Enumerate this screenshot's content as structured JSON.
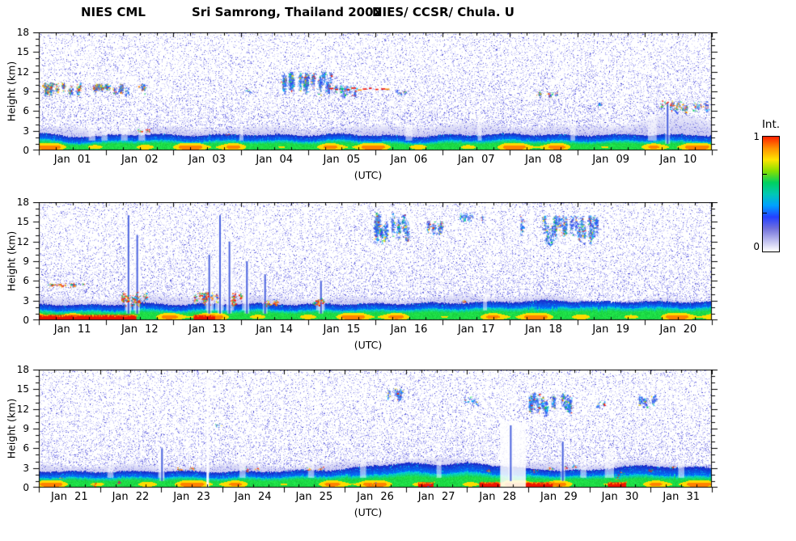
{
  "title": {
    "instrument": "NIES CML",
    "site": "Sri Samrong, Thailand 2002",
    "credit": "NIES/ CCSR/ Chula. U"
  },
  "chart_data": {
    "type": "heatmap",
    "title": "NIES CML   Sri Samrong, Thailand 2002   NIES/ CCSR/ Chula. U",
    "xlabel": "(UTC)",
    "ylabel": "Height (km)",
    "ylim": [
      0,
      18
    ],
    "yticks": [
      0,
      3,
      6,
      9,
      12,
      15,
      18
    ],
    "colorbar": {
      "label": "Int.",
      "tick_max": "1",
      "tick_min": "0",
      "stops": [
        "#ff2000",
        "#ff9000",
        "#ffe400",
        "#86e000",
        "#00d060",
        "#00c8b4",
        "#00a0ff",
        "#2440ff",
        "#7070dc",
        "#b8b8ee",
        "#ffffff"
      ]
    },
    "palettes": {
      "cirrus": [
        [
          0.34,
          "#2a4cf0"
        ],
        [
          0.55,
          "#3f6af2"
        ],
        [
          0.66,
          "#6e8ef2"
        ],
        [
          0.8,
          "#00b4ff"
        ],
        [
          0.89,
          "#00d25a"
        ],
        [
          0.94,
          "#ffe000"
        ],
        [
          1,
          "#ff2000"
        ]
      ],
      "cirrus2": [
        [
          0.3,
          "#2a4cf0"
        ],
        [
          0.46,
          "#4a72f2"
        ],
        [
          0.56,
          "#00b4ff"
        ],
        [
          0.68,
          "#00d25a"
        ],
        [
          0.78,
          "#ffe000"
        ],
        [
          0.88,
          "#ff8800"
        ],
        [
          1,
          "#ff2000"
        ]
      ],
      "spots": [
        [
          0.36,
          "#ff2000"
        ],
        [
          0.52,
          "#ff8800"
        ],
        [
          0.62,
          "#ffe000"
        ],
        [
          0.74,
          "#00d25a"
        ],
        [
          0.82,
          "#00b4ff"
        ],
        [
          1,
          "#2a4cf0"
        ]
      ],
      "reddash": [
        [
          0.7,
          "#f21000"
        ],
        [
          0.85,
          "#ff9000"
        ],
        [
          1,
          "#00d25a"
        ]
      ]
    },
    "panels": [
      {
        "days": [
          "Jan 01",
          "Jan 02",
          "Jan 03",
          "Jan 04",
          "Jan 05",
          "Jan 06",
          "Jan 07",
          "Jan 08",
          "Jan 09",
          "Jan 10"
        ],
        "haze_top": [
          [
            0,
            3.4
          ],
          [
            1,
            3.2
          ],
          [
            2,
            3.4
          ],
          [
            3,
            3.6
          ],
          [
            4,
            3.4
          ],
          [
            5,
            3.6
          ],
          [
            6,
            4.0
          ],
          [
            7,
            3.9
          ],
          [
            8,
            3.6
          ],
          [
            8.8,
            4.2
          ],
          [
            9.3,
            5.4
          ],
          [
            9.7,
            5.2
          ],
          [
            10,
            4.6
          ]
        ],
        "mixed_top": [
          [
            0,
            2.7
          ],
          [
            0.4,
            2.1
          ],
          [
            1,
            2.2
          ],
          [
            1.6,
            2.5
          ],
          [
            2,
            2.3
          ],
          [
            3,
            2.4
          ],
          [
            4,
            2.3
          ],
          [
            4.5,
            2.5
          ],
          [
            5,
            2.3
          ],
          [
            5.6,
            2.1
          ],
          [
            6,
            2.3
          ],
          [
            7,
            2.5
          ],
          [
            8,
            2.3
          ],
          [
            9,
            2.4
          ],
          [
            10,
            2.3
          ]
        ],
        "clouds": [
          {
            "d": [
              0.02,
              0.62
            ],
            "h": [
              8.2,
              10.4
            ],
            "density": 0.42,
            "palette": "cirrus2"
          },
          {
            "d": [
              0.72,
              1.58
            ],
            "h": [
              8.4,
              10.2
            ],
            "density": 0.38,
            "palette": "cirrus2"
          },
          {
            "d": [
              3.05,
              3.2
            ],
            "h": [
              8.8,
              9.6
            ],
            "density": 0.2,
            "palette": "cirrus"
          },
          {
            "d": [
              3.5,
              4.35
            ],
            "h": [
              8.5,
              12.0
            ],
            "density": 0.5,
            "palette": "cirrus"
          },
          {
            "d": [
              4.35,
              4.75
            ],
            "h": [
              7.8,
              10.0
            ],
            "density": 0.25,
            "palette": "cirrus"
          },
          {
            "d": [
              4.3,
              5.2
            ],
            "h": [
              9.2,
              9.7
            ],
            "density": 0.12,
            "palette": "reddash"
          },
          {
            "d": [
              5.3,
              5.5
            ],
            "h": [
              8.5,
              9.5
            ],
            "density": 0.22,
            "palette": "cirrus2"
          },
          {
            "d": [
              7.36,
              7.75
            ],
            "h": [
              8.0,
              9.0
            ],
            "density": 0.18,
            "palette": "cirrus2"
          },
          {
            "d": [
              8.26,
              8.4
            ],
            "h": [
              6.8,
              7.6
            ],
            "density": 0.2,
            "palette": "cirrus"
          },
          {
            "d": [
              9.2,
              9.95
            ],
            "h": [
              5.6,
              7.6
            ],
            "density": 0.2,
            "palette": "cirrus2"
          }
        ],
        "spots": [
          [
            1.5,
            3.0
          ],
          [
            1.62,
            3.1
          ],
          [
            2.8,
            2.5
          ],
          [
            9.33,
            7.2
          ]
        ],
        "gaps": [
          [
            0.74,
            0.84,
            4,
            0
          ],
          [
            0.93,
            1.02,
            4,
            0
          ],
          [
            1.22,
            1.32,
            4.2,
            0
          ],
          [
            1.48,
            1.58,
            4,
            0
          ],
          [
            2.98,
            3.04,
            3.8,
            0
          ],
          [
            5.45,
            5.55,
            4,
            0
          ],
          [
            6.52,
            6.58,
            5,
            0
          ],
          [
            7.9,
            7.97,
            4,
            0
          ],
          [
            9.05,
            9.18,
            5.5,
            0
          ]
        ],
        "streaks": [
          [
            9.33,
            7.0
          ]
        ],
        "red_bottom": []
      },
      {
        "days": [
          "Jan 11",
          "Jan 12",
          "Jan 13",
          "Jan 14",
          "Jan 15",
          "Jan 16",
          "Jan 17",
          "Jan 18",
          "Jan 19",
          "Jan 20"
        ],
        "haze_top": [
          [
            0,
            3.2
          ],
          [
            1,
            3.4
          ],
          [
            2,
            3.6
          ],
          [
            2.5,
            4.0
          ],
          [
            3,
            3.6
          ],
          [
            4,
            3.4
          ],
          [
            5,
            3.3
          ],
          [
            6,
            3.5
          ],
          [
            7,
            3.8
          ],
          [
            7.5,
            3.6
          ],
          [
            8,
            3.2
          ],
          [
            9,
            3.1
          ],
          [
            10,
            3.2
          ]
        ],
        "mixed_top": [
          [
            0,
            2.4
          ],
          [
            1,
            2.3
          ],
          [
            1.5,
            2.6
          ],
          [
            2,
            2.4
          ],
          [
            3,
            2.5
          ],
          [
            4,
            2.4
          ],
          [
            5,
            2.5
          ],
          [
            6,
            2.6
          ],
          [
            7,
            2.8
          ],
          [
            7.5,
            3.0
          ],
          [
            8,
            2.9
          ],
          [
            9,
            2.8
          ],
          [
            10,
            2.8
          ]
        ],
        "clouds": [
          {
            "d": [
              0.12,
              0.7
            ],
            "h": [
              5.1,
              5.7
            ],
            "density": 0.25,
            "palette": "spots"
          },
          {
            "d": [
              1.18,
              1.62
            ],
            "h": [
              1.9,
              4.3
            ],
            "density": 0.26,
            "palette": "spots"
          },
          {
            "d": [
              2.3,
              3.05
            ],
            "h": [
              1.9,
              4.3
            ],
            "density": 0.24,
            "palette": "spots"
          },
          {
            "d": [
              3.3,
              3.55
            ],
            "h": [
              1.9,
              3.2
            ],
            "density": 0.22,
            "palette": "spots"
          },
          {
            "d": [
              4.05,
              4.35
            ],
            "h": [
              2.2,
              3.4
            ],
            "density": 0.22,
            "palette": "spots"
          },
          {
            "d": [
              4.95,
              5.55
            ],
            "h": [
              11.8,
              16.4
            ],
            "density": 0.4,
            "palette": "cirrus"
          },
          {
            "d": [
              5.75,
              6.0
            ],
            "h": [
              12.3,
              15.2
            ],
            "density": 0.35,
            "palette": "cirrus"
          },
          {
            "d": [
              6.25,
              6.6
            ],
            "h": [
              14.8,
              16.4
            ],
            "density": 0.25,
            "palette": "cirrus"
          },
          {
            "d": [
              7.15,
              8.3
            ],
            "h": [
              11.5,
              16.0
            ],
            "density": 0.3,
            "palette": "cirrus"
          }
        ],
        "spots": [
          [
            0.2,
            5.4
          ],
          [
            0.5,
            5.3
          ],
          [
            1.3,
            3.0
          ],
          [
            2.45,
            3.2
          ],
          [
            2.9,
            3.5
          ],
          [
            3.4,
            2.5
          ],
          [
            4.15,
            2.9
          ],
          [
            6.3,
            3.0
          ]
        ],
        "gaps": [
          [
            1.28,
            1.38,
            14,
            0
          ],
          [
            1.4,
            1.5,
            12,
            0
          ],
          [
            2.48,
            2.6,
            9,
            0
          ],
          [
            2.62,
            2.75,
            14,
            0
          ],
          [
            2.78,
            2.9,
            11,
            0
          ],
          [
            3.02,
            3.12,
            8,
            0
          ],
          [
            4.12,
            4.25,
            6,
            0
          ],
          [
            6.6,
            6.66,
            4,
            0
          ]
        ],
        "streaks": [
          [
            1.32,
            16
          ],
          [
            1.45,
            13
          ],
          [
            2.52,
            10
          ],
          [
            2.68,
            16
          ],
          [
            2.82,
            12
          ],
          [
            3.08,
            9
          ],
          [
            3.35,
            7
          ],
          [
            4.18,
            6
          ]
        ],
        "red_bottom": [
          [
            0.0,
            1.45
          ],
          [
            2.3,
            2.62
          ]
        ]
      },
      {
        "days": [
          "Jan 21",
          "Jan 22",
          "Jan 23",
          "Jan 24",
          "Jan 25",
          "Jan 26",
          "Jan 27",
          "Jan 28",
          "Jan 29",
          "Jan 30",
          "Jan 31"
        ],
        "haze_top": [
          [
            0,
            3.4
          ],
          [
            1,
            3.5
          ],
          [
            2,
            3.3
          ],
          [
            3,
            3.5
          ],
          [
            4,
            3.4
          ],
          [
            5,
            3.8
          ],
          [
            5.5,
            4.3
          ],
          [
            6,
            4.4
          ],
          [
            6.5,
            4.2
          ],
          [
            7,
            4.4
          ],
          [
            7.6,
            4.0
          ],
          [
            8,
            3.7
          ],
          [
            9,
            3.7
          ],
          [
            9.5,
            4.1
          ],
          [
            10,
            3.9
          ],
          [
            11,
            3.7
          ]
        ],
        "mixed_top": [
          [
            0,
            2.5
          ],
          [
            1,
            2.4
          ],
          [
            2,
            2.5
          ],
          [
            3,
            2.4
          ],
          [
            4,
            2.5
          ],
          [
            5,
            2.8
          ],
          [
            5.5,
            3.4
          ],
          [
            6,
            3.7
          ],
          [
            6.5,
            3.5
          ],
          [
            7,
            3.7
          ],
          [
            7.5,
            3.4
          ],
          [
            8,
            2.8
          ],
          [
            9,
            2.6
          ],
          [
            9.5,
            3.2
          ],
          [
            10,
            3.3
          ],
          [
            10.5,
            3.1
          ],
          [
            11,
            3.0
          ]
        ],
        "clouds": [
          {
            "d": [
              2.85,
              3.0
            ],
            "h": [
              9.0,
              10.0
            ],
            "density": 0.15,
            "palette": "cirrus"
          },
          {
            "d": [
              5.68,
              6.0
            ],
            "h": [
              13.0,
              15.2
            ],
            "density": 0.3,
            "palette": "cirrus"
          },
          {
            "d": [
              6.95,
              7.2
            ],
            "h": [
              12.5,
              14.0
            ],
            "density": 0.22,
            "palette": "cirrus"
          },
          {
            "d": [
              8.0,
              8.7
            ],
            "h": [
              11.0,
              14.6
            ],
            "density": 0.42,
            "palette": "cirrus"
          },
          {
            "d": [
              9.0,
              9.25
            ],
            "h": [
              12.0,
              13.2
            ],
            "density": 0.2,
            "palette": "cirrus"
          },
          {
            "d": [
              9.8,
              10.15
            ],
            "h": [
              12.0,
              14.2
            ],
            "density": 0.3,
            "palette": "cirrus"
          }
        ],
        "spots": [
          [
            0.35,
            1.6
          ],
          [
            0.9,
            0.5
          ],
          [
            1.3,
            0.8
          ],
          [
            2.3,
            2.8
          ],
          [
            2.5,
            2.9
          ],
          [
            3.4,
            2.7
          ],
          [
            3.55,
            2.8
          ],
          [
            4.4,
            2.8
          ],
          [
            4.6,
            2.9
          ],
          [
            5.45,
            0.6
          ],
          [
            6.35,
            0.5
          ],
          [
            7.35,
            2.6
          ],
          [
            8.1,
            2.6
          ],
          [
            8.35,
            2.9
          ],
          [
            8.6,
            3.1
          ],
          [
            8.75,
            3.3
          ],
          [
            9.45,
            1.4
          ],
          [
            9.5,
            2.2
          ],
          [
            10.0,
            2.7
          ],
          [
            10.35,
            3.1
          ]
        ],
        "gaps": [
          [
            1.12,
            1.22,
            4,
            0
          ],
          [
            1.95,
            2.05,
            6,
            0
          ],
          [
            2.74,
            2.78,
            17.8,
            2
          ],
          [
            3.28,
            3.38,
            4.5,
            0
          ],
          [
            4.4,
            4.5,
            4,
            0
          ],
          [
            5.25,
            5.35,
            4,
            0
          ],
          [
            6.5,
            6.58,
            4,
            0
          ],
          [
            7.54,
            7.96,
            10,
            1
          ],
          [
            8.85,
            8.95,
            5,
            0
          ],
          [
            9.25,
            9.4,
            6,
            0
          ],
          [
            10.45,
            10.55,
            4,
            0
          ]
        ],
        "streaks": [
          [
            2.0,
            6
          ],
          [
            7.7,
            9.5
          ],
          [
            8.55,
            7
          ]
        ],
        "red_bottom": [
          [
            6.2,
            6.45
          ],
          [
            7.2,
            7.55
          ],
          [
            7.95,
            8.4
          ],
          [
            9.3,
            9.6
          ]
        ]
      }
    ]
  }
}
